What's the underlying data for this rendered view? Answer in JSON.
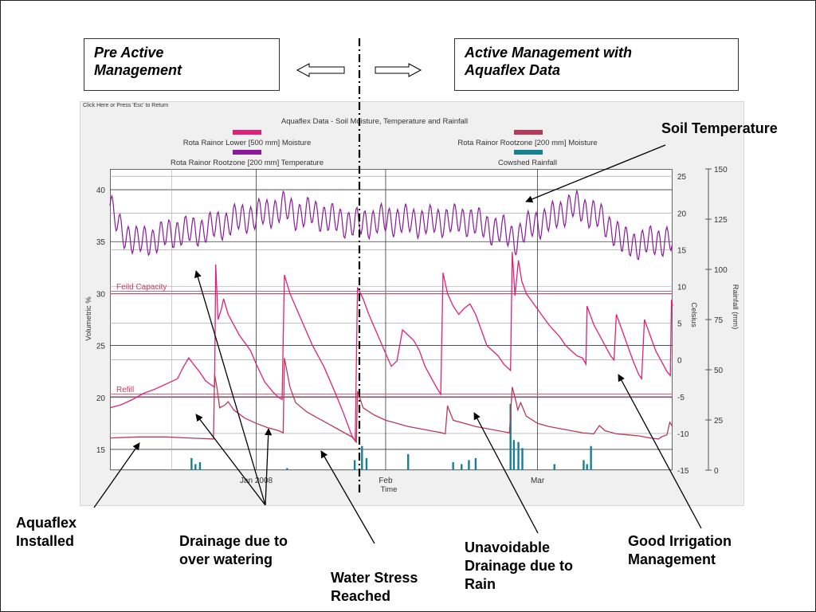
{
  "slide": {
    "pre_box": [
      "Pre Active",
      "Management"
    ],
    "active_box": [
      "Active Management with",
      "Aquaflex Data"
    ],
    "callouts": {
      "soil_temperature": [
        "Soil Temperature"
      ],
      "aquaflex_installed": [
        "Aquaflex",
        "Installed"
      ],
      "drainage_over_watering": [
        "Drainage due to",
        "over watering"
      ],
      "water_stress": [
        "Water Stress",
        "Reached"
      ],
      "unavoidable_drainage": [
        "Unavoidable",
        "Drainage due to",
        "Rain"
      ],
      "good_irrigation": [
        "Good Irrigation",
        "Management"
      ]
    },
    "panel_caption": "Click Here or Press 'Esc' to Return"
  },
  "chart_data": {
    "type": "line",
    "title": "Aquaflex Data - Soil Moisture, Temperature and Rainfall",
    "legend": [
      {
        "name": "Rota Rainor Lower [500 mm] Moisture",
        "color": "#e0207a"
      },
      {
        "name": "Rota Rainor Rootzone [200 mm] Moisture",
        "color": "#b83a5a"
      },
      {
        "name": "Rota Rainor Rootzone [200 mm] Temperature",
        "color": "#8a1a9a"
      },
      {
        "name": "Cowshed Rainfall",
        "color": "#167f90"
      }
    ],
    "x_axis": {
      "label": "Time",
      "ticks": [
        "Jan 2008",
        "Feb",
        "Mar"
      ]
    },
    "y_left": {
      "label": "Volumetric %",
      "ticks": [
        15,
        20,
        25,
        30,
        35,
        40
      ],
      "range": [
        13,
        42
      ]
    },
    "y_mid": {
      "label": "Celsius",
      "ticks": [
        -15,
        -10,
        -5,
        0,
        5,
        10,
        15,
        20,
        25
      ],
      "range": [
        -15,
        26
      ]
    },
    "y_right": {
      "label": "Rainfall (mm)",
      "ticks": [
        0,
        25,
        50,
        75,
        100,
        125,
        150
      ],
      "range": [
        0,
        150
      ]
    },
    "reference_lines": [
      {
        "label": "Feild Capacity",
        "value": 30.1
      },
      {
        "label": "Refill",
        "value": 20.2
      }
    ],
    "x_range": [
      0,
      100
    ],
    "series": [
      {
        "name": "Rota Rainor Lower [500 mm] Moisture",
        "color": "#e0207a",
        "points": [
          [
            0,
            19.0
          ],
          [
            2,
            19.3
          ],
          [
            4,
            19.8
          ],
          [
            6,
            20.4
          ],
          [
            8,
            20.8
          ],
          [
            10,
            21.3
          ],
          [
            12,
            21.8
          ],
          [
            13,
            22.9
          ],
          [
            14,
            23.8
          ],
          [
            15,
            23.1
          ],
          [
            16,
            22.4
          ],
          [
            17,
            21.6
          ],
          [
            18,
            21.2
          ],
          [
            18.6,
            21.0
          ],
          [
            18.8,
            32.8
          ],
          [
            19.2,
            27.5
          ],
          [
            19.8,
            28.5
          ],
          [
            20.2,
            29.5
          ],
          [
            21,
            28.0
          ],
          [
            23,
            26.0
          ],
          [
            25,
            24.5
          ],
          [
            26,
            23.2
          ],
          [
            27.5,
            21.5
          ],
          [
            29,
            20.5
          ],
          [
            30,
            20.0
          ],
          [
            30.6,
            19.8
          ],
          [
            31.0,
            31.8
          ],
          [
            32,
            30.0
          ],
          [
            34,
            27.5
          ],
          [
            36,
            25.0
          ],
          [
            38,
            23.0
          ],
          [
            40,
            20.5
          ],
          [
            41.5,
            18.5
          ],
          [
            43,
            16.3
          ],
          [
            43.6,
            15.8
          ],
          [
            44.0,
            30.6
          ],
          [
            45,
            29.5
          ],
          [
            46,
            28.0
          ],
          [
            48,
            25.5
          ],
          [
            50,
            23.0
          ],
          [
            51,
            23.5
          ],
          [
            52,
            26.5
          ],
          [
            53,
            26.0
          ],
          [
            54,
            25.5
          ],
          [
            55,
            24.5
          ],
          [
            56,
            23.0
          ],
          [
            57,
            22.0
          ],
          [
            58,
            21.0
          ],
          [
            58.8,
            20.3
          ],
          [
            59.2,
            32.0
          ],
          [
            60,
            30.0
          ],
          [
            61,
            28.8
          ],
          [
            62,
            28.0
          ],
          [
            63,
            28.6
          ],
          [
            64,
            29.0
          ],
          [
            65,
            28.0
          ],
          [
            66,
            26.5
          ],
          [
            67,
            25.0
          ],
          [
            68,
            24.5
          ],
          [
            69,
            24.0
          ],
          [
            70,
            23.2
          ],
          [
            71.2,
            22.6
          ],
          [
            71.5,
            34.0
          ],
          [
            72,
            29.8
          ],
          [
            72.6,
            33.2
          ],
          [
            73.2,
            31.2
          ],
          [
            74,
            30.0
          ],
          [
            76,
            28.5
          ],
          [
            78,
            27.0
          ],
          [
            80,
            25.8
          ],
          [
            81,
            25.0
          ],
          [
            82,
            24.5
          ],
          [
            83,
            24.0
          ],
          [
            84,
            23.8
          ],
          [
            84.6,
            23.2
          ],
          [
            84.8,
            28.8
          ],
          [
            86,
            27.0
          ],
          [
            88,
            25.0
          ],
          [
            89,
            24.0
          ],
          [
            89.6,
            23.6
          ],
          [
            90.0,
            28.0
          ],
          [
            91,
            26.5
          ],
          [
            92,
            25.0
          ],
          [
            93,
            23.5
          ],
          [
            94,
            22.2
          ],
          [
            94.5,
            21.8
          ],
          [
            95,
            27.5
          ],
          [
            96,
            26.0
          ],
          [
            97,
            24.5
          ],
          [
            98,
            23.5
          ],
          [
            99,
            22.5
          ],
          [
            99.6,
            22.1
          ],
          [
            99.8,
            29.4
          ],
          [
            100,
            28.8
          ]
        ]
      },
      {
        "name": "Rota Rainor Rootzone [200 mm] Moisture",
        "color": "#b83a5a",
        "points": [
          [
            0,
            16.1
          ],
          [
            5,
            16.2
          ],
          [
            10,
            16.2
          ],
          [
            14,
            16.1
          ],
          [
            18.4,
            16.0
          ],
          [
            18.6,
            22.2
          ],
          [
            19,
            21.0
          ],
          [
            19.5,
            19.0
          ],
          [
            20.5,
            19.3
          ],
          [
            21,
            19.6
          ],
          [
            22,
            18.8
          ],
          [
            24,
            18.0
          ],
          [
            26,
            17.5
          ],
          [
            28,
            17.1
          ],
          [
            30,
            16.8
          ],
          [
            30.8,
            16.6
          ],
          [
            31.0,
            23.8
          ],
          [
            32,
            21.0
          ],
          [
            33,
            19.5
          ],
          [
            35,
            18.6
          ],
          [
            37,
            18.0
          ],
          [
            39,
            17.4
          ],
          [
            41,
            16.8
          ],
          [
            43,
            16.2
          ],
          [
            43.8,
            15.7
          ],
          [
            44.0,
            20.6
          ],
          [
            45,
            19.0
          ],
          [
            47,
            18.3
          ],
          [
            49,
            17.8
          ],
          [
            51,
            17.5
          ],
          [
            53,
            17.2
          ],
          [
            55,
            17.0
          ],
          [
            57,
            16.8
          ],
          [
            59,
            16.6
          ],
          [
            59.6,
            16.5
          ],
          [
            60,
            19.2
          ],
          [
            61,
            17.8
          ],
          [
            63,
            17.5
          ],
          [
            65,
            17.2
          ],
          [
            67,
            17.0
          ],
          [
            69,
            16.8
          ],
          [
            71,
            16.6
          ],
          [
            71.5,
            21.0
          ],
          [
            72,
            20.0
          ],
          [
            72.5,
            18.8
          ],
          [
            73,
            19.5
          ],
          [
            74,
            18.2
          ],
          [
            76,
            17.5
          ],
          [
            78,
            17.2
          ],
          [
            80,
            17.0
          ],
          [
            82,
            16.8
          ],
          [
            84,
            16.6
          ],
          [
            86,
            16.5
          ],
          [
            87,
            17.3
          ],
          [
            88,
            16.8
          ],
          [
            90,
            16.5
          ],
          [
            92,
            16.4
          ],
          [
            94,
            16.3
          ],
          [
            96,
            16.1
          ],
          [
            97.5,
            16.0
          ],
          [
            98,
            16.2
          ],
          [
            99,
            16.4
          ],
          [
            99.5,
            17.6
          ],
          [
            100,
            17.2
          ]
        ]
      },
      {
        "name": "Rota Rainor Rootzone [200 mm] Temperature",
        "color": "#8a1a9a",
        "baseline": [
          [
            0,
            21
          ],
          [
            1,
            19
          ],
          [
            2,
            17.5
          ],
          [
            5,
            16
          ],
          [
            8,
            16.5
          ],
          [
            12,
            17.5
          ],
          [
            15,
            17.5
          ],
          [
            18,
            18
          ],
          [
            22,
            19
          ],
          [
            25,
            19.5
          ],
          [
            28,
            20
          ],
          [
            31,
            20.8
          ],
          [
            33,
            19.8
          ],
          [
            36,
            20
          ],
          [
            40,
            19
          ],
          [
            44,
            18.5
          ],
          [
            48,
            19
          ],
          [
            52,
            19
          ],
          [
            56,
            18.8
          ],
          [
            60,
            19
          ],
          [
            64,
            19
          ],
          [
            68,
            17.8
          ],
          [
            70,
            17.5
          ],
          [
            72,
            16.5
          ],
          [
            73,
            17
          ],
          [
            75,
            18.5
          ],
          [
            78,
            19
          ],
          [
            80,
            20
          ],
          [
            82,
            21
          ],
          [
            84,
            20.5
          ],
          [
            86,
            20
          ],
          [
            88,
            18.5
          ],
          [
            90,
            17.5
          ],
          [
            91,
            16
          ],
          [
            94,
            15.8
          ],
          [
            97,
            16.2
          ],
          [
            98,
            16.3
          ],
          [
            100,
            16.2
          ]
        ],
        "wave_amplitude_celsius": 1.8,
        "wave_period_x": 1.45
      },
      {
        "name": "Cowshed Rainfall",
        "color": "#167f90",
        "type": "bar",
        "points": [
          [
            14.5,
            6
          ],
          [
            15.2,
            3
          ],
          [
            16,
            4
          ],
          [
            31.5,
            1
          ],
          [
            43.5,
            5
          ],
          [
            44.8,
            12
          ],
          [
            45.6,
            6
          ],
          [
            53,
            8
          ],
          [
            61,
            4
          ],
          [
            62.5,
            3
          ],
          [
            63.8,
            5
          ],
          [
            65,
            6
          ],
          [
            71.2,
            33
          ],
          [
            71.8,
            15
          ],
          [
            72.6,
            14
          ],
          [
            73.3,
            11
          ],
          [
            79,
            3
          ],
          [
            84.2,
            5
          ],
          [
            84.8,
            3
          ],
          [
            85.5,
            12
          ]
        ]
      }
    ]
  }
}
